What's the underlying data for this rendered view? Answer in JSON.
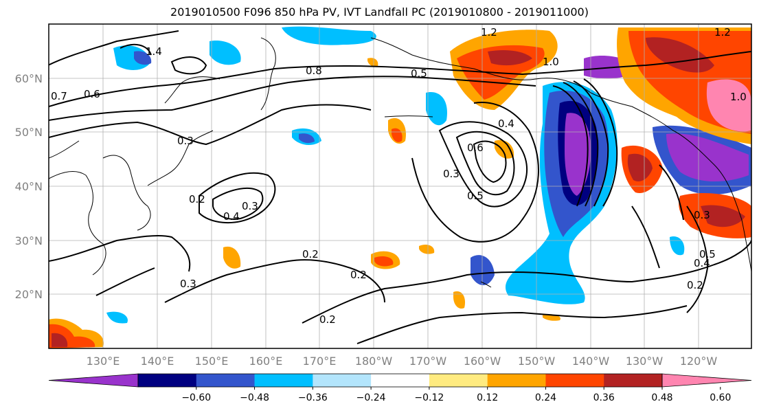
{
  "title": "2019010500 F096 850 hPa PV, IVT Landfall PC (2019010800 - 2019011000)",
  "lat_labels": [
    "60°N",
    "50°N",
    "40°N",
    "30°N",
    "20°N"
  ],
  "lon_labels": [
    "130°E",
    "140°E",
    "150°E",
    "160°E",
    "170°E",
    "180°W",
    "170°W",
    "160°W",
    "150°W",
    "140°W",
    "130°W",
    "120°W"
  ],
  "colorbar": {
    "colors": [
      "#9933cc",
      "#000080",
      "#3355cc",
      "#00bfff",
      "#b3e5fc",
      "#ffffff",
      "#ffeb80",
      "#ffa500",
      "#ff4500",
      "#b22222",
      "#ff85b0"
    ],
    "ticks": [
      "−0.60",
      "−0.48",
      "−0.36",
      "−0.24",
      "−0.12",
      "0.12",
      "0.24",
      "0.36",
      "0.48",
      "0.60"
    ]
  },
  "contour_labels": [
    {
      "text": "0.2",
      "name": "label-0-2-a"
    },
    {
      "text": "0.3",
      "name": "label-0-3-a"
    },
    {
      "text": "0.4",
      "name": "label-0-4-a"
    },
    {
      "text": "0.3",
      "name": "label-0-3-b"
    },
    {
      "text": "0.2",
      "name": "label-0-2-b"
    },
    {
      "text": "0.3",
      "name": "label-0-3-c"
    },
    {
      "text": "0.2",
      "name": "label-0-2-c"
    },
    {
      "text": "0.2",
      "name": "label-0-2-d"
    },
    {
      "text": "0.3",
      "name": "label-0-3-d"
    },
    {
      "text": "0.5",
      "name": "label-0-5-a"
    },
    {
      "text": "0.4",
      "name": "label-0-4-b"
    },
    {
      "text": "0.6",
      "name": "label-0-6-a"
    },
    {
      "text": "0.5",
      "name": "label-0-5-b"
    },
    {
      "text": "0.8",
      "name": "label-0-8-a"
    },
    {
      "text": "0.7",
      "name": "label-0-7-a"
    },
    {
      "text": "0.6",
      "name": "label-0-6-b"
    },
    {
      "text": "1.4",
      "name": "label-1-4-a"
    },
    {
      "text": "1.2",
      "name": "label-1-2-a"
    },
    {
      "text": "1.0",
      "name": "label-1-0-a"
    },
    {
      "text": "0.5",
      "name": "label-0-5-c"
    },
    {
      "text": "0.4",
      "name": "label-0-4-c"
    },
    {
      "text": "0.2",
      "name": "label-0-2-e"
    },
    {
      "text": "0.3",
      "name": "label-0-3-e"
    },
    {
      "text": "1.2",
      "name": "label-1-2-b"
    },
    {
      "text": "1.0",
      "name": "label-1-0-b"
    }
  ]
}
